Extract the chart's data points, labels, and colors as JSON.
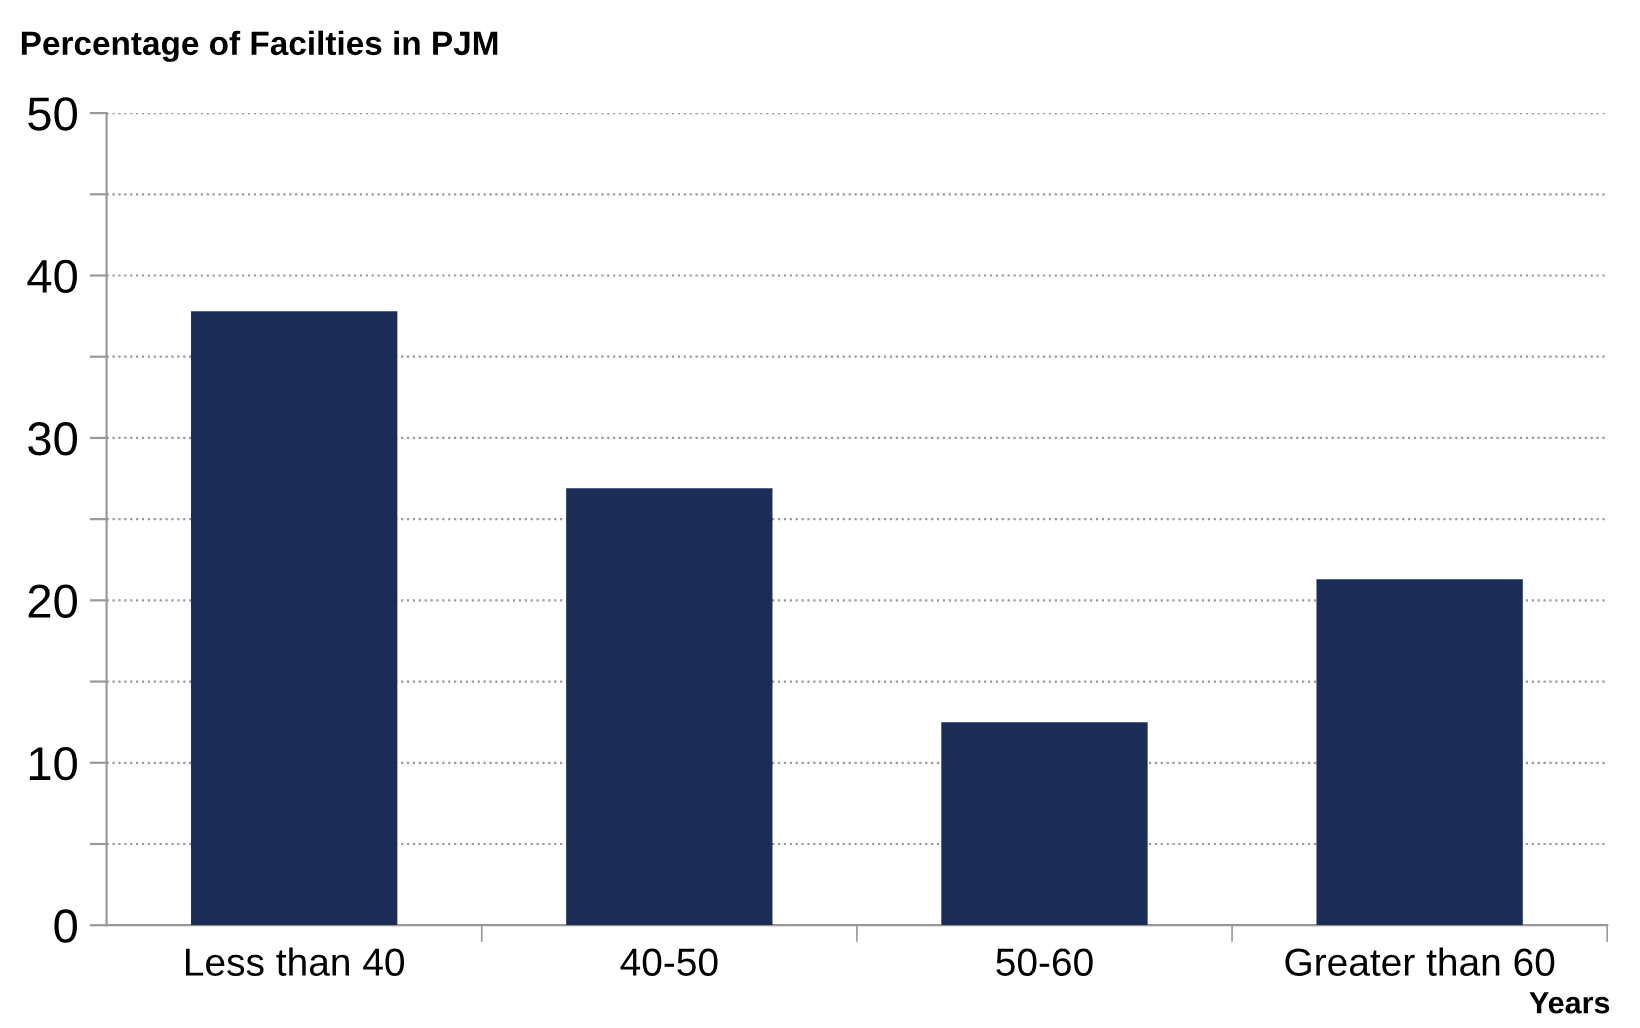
{
  "chart_data": {
    "type": "bar",
    "ylabel": "Percentage of Facilties in PJM",
    "xlabel": "Years",
    "categories": [
      "Less than 40",
      "40-50",
      "50-60",
      "Greater than 60"
    ],
    "values": [
      37.8,
      26.9,
      12.5,
      21.3
    ],
    "color": "#1b2d56",
    "ylim": [
      0,
      50
    ],
    "yticks": [
      0,
      {
        "value": 5,
        "label": null
      },
      10,
      {
        "value": 15,
        "label": null
      },
      20,
      {
        "value": 25,
        "label": null
      },
      30,
      {
        "value": 35,
        "label": null
      },
      40,
      {
        "value": 45,
        "label": null
      },
      50
    ],
    "grid": "y"
  }
}
